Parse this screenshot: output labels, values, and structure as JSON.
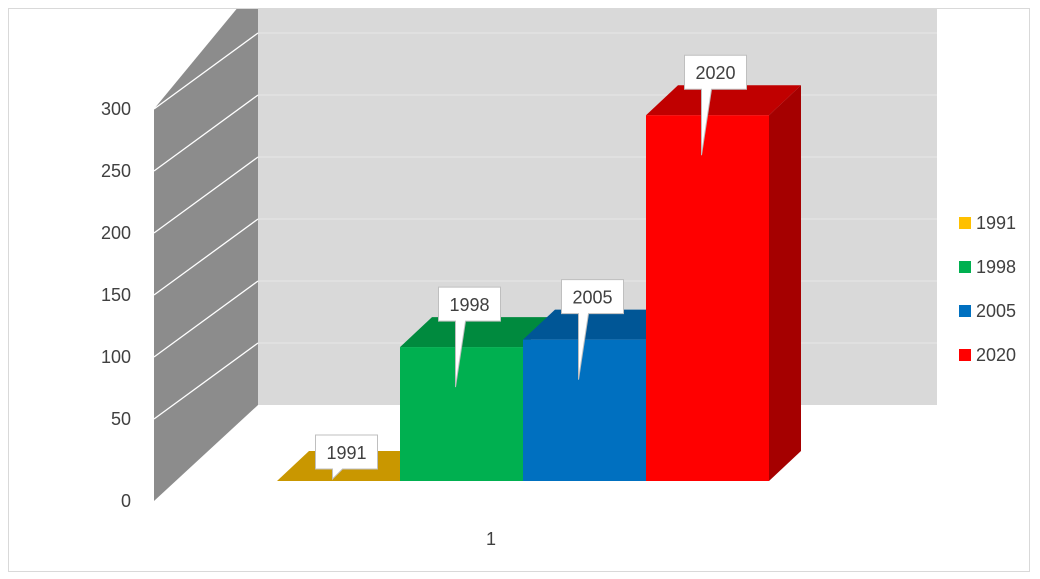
{
  "chart_data": {
    "type": "bar",
    "variant": "3d-clustered-column",
    "categories": [
      "1"
    ],
    "series": [
      {
        "name": "1991",
        "values": [
          0
        ],
        "color": "#FFC000",
        "top_color": "#C99700",
        "side_color": "#B48700"
      },
      {
        "name": "1998",
        "values": [
          108
        ],
        "color": "#00B050",
        "top_color": "#008A3E",
        "side_color": "#00803A"
      },
      {
        "name": "2005",
        "values": [
          114
        ],
        "color": "#0070C0",
        "top_color": "#005696",
        "side_color": "#004F8A"
      },
      {
        "name": "2020",
        "values": [
          295
        ],
        "color": "#FF0000",
        "top_color": "#C00000",
        "side_color": "#A50000"
      }
    ],
    "ylim": [
      0,
      300
    ],
    "y_ticks": [
      "0",
      "50",
      "100",
      "150",
      "200",
      "250",
      "300"
    ],
    "x_tick_labels": [
      "1"
    ],
    "data_labels": [
      "1991",
      "1998",
      "2005",
      "2020"
    ],
    "legend_position": "right",
    "grid": true,
    "title": "",
    "xlabel": "",
    "ylabel": "",
    "colors": {
      "wall": "#D9D9D9",
      "side_wall": "#8C8C8C",
      "gridline": "#FFFFFF",
      "text": "#404040"
    }
  }
}
